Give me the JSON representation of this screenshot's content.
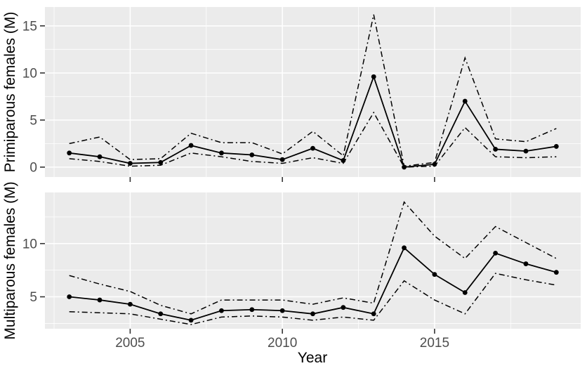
{
  "figure": {
    "xlabel": "Year",
    "background_color": "#FFFFFF",
    "panel_background_color": "#EBEBEB",
    "grid_color": "#FFFFFF",
    "line_color": "#000000",
    "tick_mark_color": "#333333",
    "tick_label_color": "#4D4D4D",
    "axis_title_color": "#000000"
  },
  "chart_data": [
    {
      "type": "line",
      "title": "",
      "ylabel": "Primiparous females (M)",
      "xlabel": "Year",
      "legend": "none",
      "grid": true,
      "x": [
        2003,
        2004,
        2005,
        2006,
        2007,
        2008,
        2009,
        2010,
        2011,
        2012,
        2013,
        2014,
        2015,
        2016,
        2017,
        2018,
        2019
      ],
      "series": [
        {
          "name": "estimate",
          "style": "solid",
          "points": true,
          "values": [
            1.5,
            1.1,
            0.4,
            0.5,
            2.3,
            1.5,
            1.3,
            0.8,
            2.0,
            0.7,
            9.6,
            0.0,
            0.3,
            7.0,
            1.9,
            1.7,
            2.2
          ]
        },
        {
          "name": "upper-ci",
          "style": "dashdot",
          "points": false,
          "values": [
            2.5,
            3.2,
            0.8,
            0.9,
            3.6,
            2.6,
            2.6,
            1.4,
            3.8,
            1.2,
            16.2,
            0.1,
            0.5,
            11.6,
            3.0,
            2.7,
            4.1
          ]
        },
        {
          "name": "lower-ci",
          "style": "dashdot",
          "points": false,
          "values": [
            0.9,
            0.6,
            0.1,
            0.2,
            1.5,
            1.1,
            0.6,
            0.4,
            1.0,
            0.4,
            5.8,
            0.0,
            0.1,
            4.2,
            1.1,
            1.0,
            1.1
          ]
        }
      ],
      "xlim": [
        2002.2,
        2019.8
      ],
      "ylim": [
        -1.05,
        17.0
      ],
      "xticks": [
        2005,
        2010,
        2015
      ],
      "xticks_minor": [
        2002.5,
        2007.5,
        2012.5,
        2017.5
      ],
      "yticks": [
        0,
        5,
        10,
        15
      ],
      "yticks_minor": [
        2.5,
        7.5,
        12.5
      ]
    },
    {
      "type": "line",
      "title": "",
      "ylabel": "Multiparous females (M)",
      "xlabel": "Year",
      "legend": "none",
      "grid": true,
      "x": [
        2003,
        2004,
        2005,
        2006,
        2007,
        2008,
        2009,
        2010,
        2011,
        2012,
        2013,
        2014,
        2015,
        2016,
        2017,
        2018,
        2019
      ],
      "series": [
        {
          "name": "estimate",
          "style": "solid",
          "points": true,
          "values": [
            5.0,
            4.7,
            4.3,
            3.4,
            2.8,
            3.7,
            3.8,
            3.7,
            3.4,
            4.0,
            3.4,
            9.6,
            7.1,
            5.4,
            9.1,
            8.1,
            7.3
          ]
        },
        {
          "name": "upper-ci",
          "style": "dashdot",
          "points": false,
          "values": [
            7.0,
            6.2,
            5.5,
            4.2,
            3.4,
            4.7,
            4.7,
            4.7,
            4.3,
            4.9,
            4.4,
            13.9,
            10.7,
            8.6,
            11.6,
            10.1,
            8.6
          ]
        },
        {
          "name": "lower-ci",
          "style": "dashdot",
          "points": false,
          "values": [
            3.6,
            3.5,
            3.4,
            2.9,
            2.4,
            3.1,
            3.2,
            3.1,
            2.8,
            3.1,
            2.8,
            6.5,
            4.7,
            3.4,
            7.2,
            6.6,
            6.1
          ]
        }
      ],
      "xlim": [
        2002.2,
        2019.8
      ],
      "ylim": [
        2.0,
        14.8
      ],
      "xticks": [
        2005,
        2010,
        2015
      ],
      "xticks_minor": [
        2002.5,
        2007.5,
        2012.5,
        2017.5
      ],
      "yticks": [
        5,
        10
      ],
      "yticks_minor": [
        2.5,
        7.5,
        12.5
      ]
    }
  ]
}
